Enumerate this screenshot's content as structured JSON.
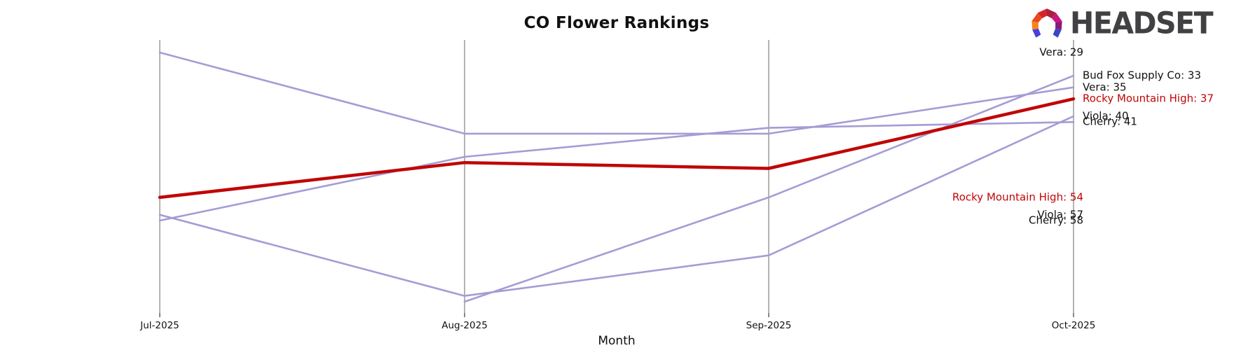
{
  "logo": {
    "text": "HEADSET"
  },
  "chart_data": {
    "type": "line",
    "title": "CO Flower Rankings",
    "xlabel": "Month",
    "x_categories": [
      "Jul-2025",
      "Aug-2025",
      "Sep-2025",
      "Oct-2025"
    ],
    "y_axis": {
      "inverted": true,
      "unit": "rank",
      "range_visible": [
        29,
        72
      ]
    },
    "grid": {
      "vertical_gridlines": true,
      "gridline_color": "#b3b3b3"
    },
    "legend_position": "inline-edge-labels",
    "series": [
      {
        "name": "Vera",
        "values": [
          29,
          43,
          43,
          35
        ],
        "color": "#a59cd5",
        "highlight": false,
        "label_left": "Vera: 29",
        "label_right": "Vera: 35",
        "label_color": "#111111"
      },
      {
        "name": "Viola",
        "values": [
          57,
          71,
          64,
          40
        ],
        "color": "#a59cd5",
        "highlight": false,
        "label_left": "Viola: 57",
        "label_right": "Viola: 40",
        "label_color": "#111111"
      },
      {
        "name": "Cherry",
        "values": [
          58,
          47,
          42,
          41
        ],
        "color": "#a59cd5",
        "highlight": false,
        "label_left": "Cherry: 58",
        "label_right": "Cherry: 41",
        "label_color": "#111111"
      },
      {
        "name": "Bud Fox Supply Co",
        "values": [
          null,
          72,
          54,
          33
        ],
        "color": "#a59cd5",
        "highlight": false,
        "label_left": null,
        "label_right": "Bud Fox Supply Co: 33",
        "label_color": "#111111"
      },
      {
        "name": "Rocky Mountain High",
        "values": [
          54,
          48,
          49,
          37
        ],
        "color": "#c00606",
        "highlight": true,
        "label_left": "Rocky Mountain High: 54",
        "label_right": "Rocky Mountain High: 37",
        "label_color": "#c00606"
      }
    ]
  }
}
